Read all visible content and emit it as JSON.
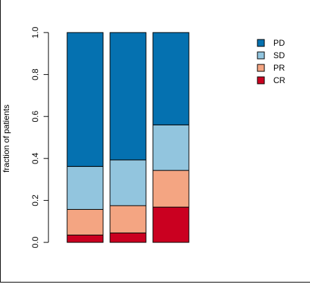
{
  "chart_data": {
    "type": "bar",
    "stacked": true,
    "categories": [
      "",
      "",
      ""
    ],
    "ylabel": "fraction of patients",
    "xlabel": "",
    "title": "",
    "ylim": [
      0,
      1
    ],
    "yticks": [
      "0.0",
      "0.2",
      "0.4",
      "0.6",
      "0.8",
      "1.0"
    ],
    "grid": false,
    "legend_position": "top-right",
    "series": [
      {
        "name": "CR",
        "color": "#ca0020",
        "values": [
          0.035,
          0.045,
          0.168
        ]
      },
      {
        "name": "PR",
        "color": "#f4a582",
        "values": [
          0.122,
          0.13,
          0.175
        ]
      },
      {
        "name": "SD",
        "color": "#92c5de",
        "values": [
          0.205,
          0.218,
          0.217
        ]
      },
      {
        "name": "PD",
        "color": "#0571b0",
        "values": [
          0.638,
          0.607,
          0.44
        ]
      }
    ]
  }
}
